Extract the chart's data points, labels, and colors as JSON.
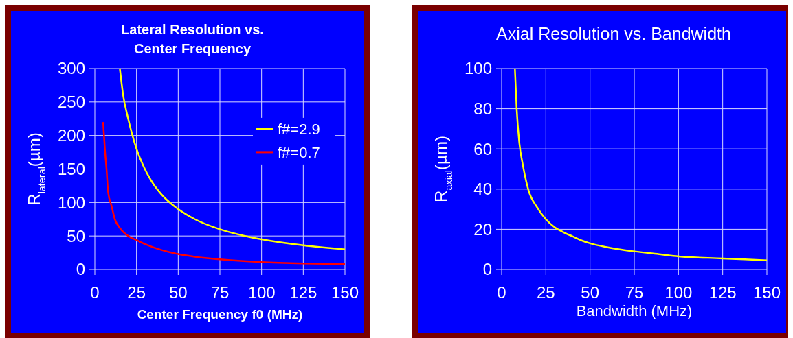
{
  "chart_data": [
    {
      "type": "line",
      "title": "Lateral Resolution vs. Center Frequency",
      "xlabel": "Center Frequency f0 (MHz)",
      "ylabel": "R$_{lateral}$(µm)",
      "xlim": [
        0,
        150
      ],
      "xticks": [
        0,
        25,
        50,
        75,
        100,
        125,
        150
      ],
      "ylim": [
        0,
        300
      ],
      "yticks": [
        0,
        50,
        100,
        150,
        200,
        250,
        300
      ],
      "grid": true,
      "legend": "right",
      "series": [
        {
          "name": "f#=2.9",
          "color": "#ffff00",
          "x": [
            15,
            17,
            20,
            25,
            30,
            35,
            40,
            50,
            60,
            75,
            90,
            100,
            125,
            150
          ],
          "values": [
            300,
            260,
            225,
            180,
            150,
            128,
            112,
            90,
            75,
            60,
            50,
            45,
            36,
            30
          ]
        },
        {
          "name": "f#=0.7",
          "color": "#ff0000",
          "x": [
            5,
            6,
            7,
            8,
            10,
            12,
            15,
            20,
            25,
            30,
            40,
            50,
            60,
            75,
            100,
            125,
            150
          ],
          "values": [
            220,
            180,
            150,
            115,
            95,
            75,
            62,
            50,
            44,
            38,
            29,
            23,
            19,
            15,
            11,
            9,
            8
          ]
        }
      ]
    },
    {
      "type": "line",
      "title": "Axial Resolution vs. Bandwidth",
      "xlabel": "Bandwidth (MHz)",
      "ylabel": "R$_{axial}$(µm)",
      "xlim": [
        0,
        150
      ],
      "xticks": [
        0,
        25,
        50,
        75,
        100,
        125,
        150
      ],
      "ylim": [
        0,
        100
      ],
      "yticks": [
        0,
        20,
        40,
        60,
        80,
        100
      ],
      "grid": true,
      "series": [
        {
          "color": "#ffff00",
          "x": [
            7.5,
            8.5,
            10,
            12,
            15,
            20,
            25,
            30,
            35,
            40,
            45,
            50,
            60,
            75,
            90,
            100,
            125,
            150
          ],
          "values": [
            100,
            80,
            63,
            52,
            40,
            31,
            25,
            21,
            18.5,
            16.5,
            14.5,
            13,
            11,
            9,
            7.5,
            6.5,
            5.5,
            4.5
          ]
        }
      ]
    }
  ]
}
